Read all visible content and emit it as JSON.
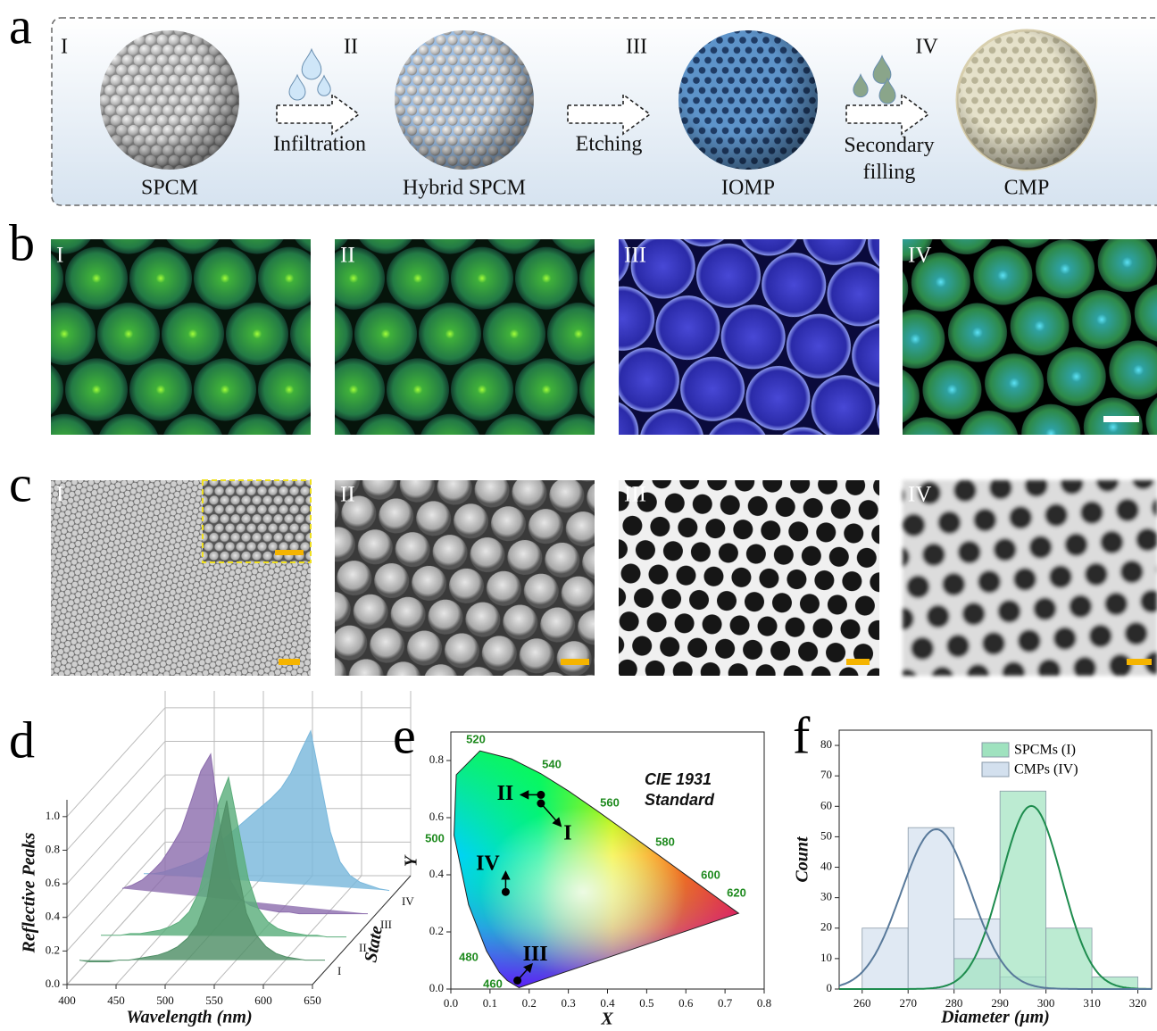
{
  "panel_labels": [
    "a",
    "b",
    "c",
    "d",
    "e",
    "f"
  ],
  "schematic": {
    "stages": [
      "I",
      "II",
      "III",
      "IV"
    ],
    "products": [
      "SPCM",
      "Hybrid SPCM",
      "IOMP",
      "CMP"
    ],
    "processes": [
      "Infiltration",
      "Etching",
      "Secondary filling"
    ]
  },
  "micrographs": {
    "labels": [
      "I",
      "II",
      "III",
      "IV"
    ]
  },
  "sem_images": {
    "labels": [
      "I",
      "II",
      "III",
      "IV"
    ]
  },
  "chart_data": [
    {
      "type": "waterfall",
      "xlabel": "Wavelength (nm)",
      "ylabel": "Reflective Peaks",
      "zlabel": "State",
      "x": [
        400,
        410,
        420,
        430,
        440,
        450,
        460,
        470,
        480,
        490,
        500,
        510,
        520,
        530,
        540,
        550,
        560,
        570,
        580,
        590,
        600,
        610,
        620,
        630,
        640,
        650
      ],
      "xlim": [
        400,
        650
      ],
      "xticks": [
        400,
        450,
        500,
        550,
        600,
        650
      ],
      "ylim": [
        0,
        1.1
      ],
      "yticks": [
        {
          "value": 0,
          "label": "0.0"
        },
        0.2,
        0.4,
        0.6,
        0.8,
        {
          "value": 1,
          "label": "1.0"
        }
      ],
      "series": [
        {
          "name": "I",
          "color": "#4f8f66",
          "values": [
            0.05,
            0.04,
            0.04,
            0.04,
            0.05,
            0.05,
            0.06,
            0.07,
            0.08,
            0.1,
            0.13,
            0.18,
            0.26,
            0.42,
            0.75,
            1.0,
            0.62,
            0.33,
            0.2,
            0.13,
            0.09,
            0.07,
            0.06,
            0.05,
            0.05,
            0.05
          ]
        },
        {
          "name": "II",
          "color": "#5cae7c",
          "values": [
            0.06,
            0.06,
            0.06,
            0.07,
            0.07,
            0.08,
            0.09,
            0.11,
            0.14,
            0.2,
            0.32,
            0.55,
            0.85,
            1.0,
            0.7,
            0.4,
            0.22,
            0.14,
            0.1,
            0.08,
            0.07,
            0.06,
            0.06,
            0.05,
            0.05,
            0.05
          ]
        },
        {
          "name": "III",
          "color": "#8e6fae",
          "values": [
            0.2,
            0.22,
            0.25,
            0.3,
            0.36,
            0.45,
            0.55,
            0.72,
            0.9,
            1.0,
            0.55,
            0.25,
            0.14,
            0.1,
            0.08,
            0.07,
            0.06,
            0.06,
            0.05,
            0.05,
            0.05,
            0.05,
            0.05,
            0.05,
            0.05,
            0.05
          ]
        },
        {
          "name": "IV",
          "color": "#7ab8dc",
          "values": [
            0.15,
            0.15,
            0.16,
            0.18,
            0.2,
            0.22,
            0.25,
            0.3,
            0.35,
            0.4,
            0.45,
            0.5,
            0.55,
            0.6,
            0.66,
            0.75,
            0.88,
            1.0,
            0.7,
            0.4,
            0.22,
            0.14,
            0.1,
            0.08,
            0.06,
            0.05
          ]
        }
      ]
    },
    {
      "type": "chromaticity",
      "xlabel": "X",
      "ylabel": "Y",
      "annotation": "CIE 1931 Standard",
      "xlim": [
        0,
        0.8
      ],
      "xticks": [
        {
          "value": 0,
          "label": "0.0"
        },
        0.1,
        0.2,
        0.3,
        0.4,
        0.5,
        0.6,
        0.7,
        0.8
      ],
      "ylim": [
        0,
        0.9
      ],
      "yticks": [
        {
          "value": 0,
          "label": "0.0"
        },
        0.2,
        0.4,
        0.6,
        0.8
      ],
      "locus_labels": [
        520,
        540,
        560,
        580,
        600,
        620,
        500,
        480,
        460
      ],
      "points": {
        "x": [
          0.23,
          0.23,
          0.14,
          0.17
        ],
        "y": [
          0.68,
          0.65,
          0.34,
          0.03
        ],
        "labels": [
          "II",
          "I",
          "IV",
          "III"
        ]
      }
    },
    {
      "type": "histogram",
      "xlabel": "Diameter (μm)",
      "ylabel": "Count",
      "bins": [
        260,
        270,
        280,
        290,
        300,
        310,
        320
      ],
      "xlim": [
        255,
        323
      ],
      "xticks": [
        260,
        270,
        280,
        290,
        300,
        310,
        320
      ],
      "ylim": [
        0,
        85
      ],
      "yticks": [
        0,
        10,
        20,
        30,
        40,
        50,
        60,
        70,
        80
      ],
      "legend": "upper right",
      "series": [
        {
          "name": "SPCMs (I)",
          "color": "#9fe2bf",
          "line_color": "#1e8c4e",
          "values": [
            0,
            0,
            10,
            65,
            20,
            4
          ]
        },
        {
          "name": "CMPs (IV)",
          "color": "#d3e0ee",
          "line_color": "#58799a",
          "values": [
            20,
            53,
            23,
            4,
            0,
            0
          ]
        }
      ]
    }
  ]
}
